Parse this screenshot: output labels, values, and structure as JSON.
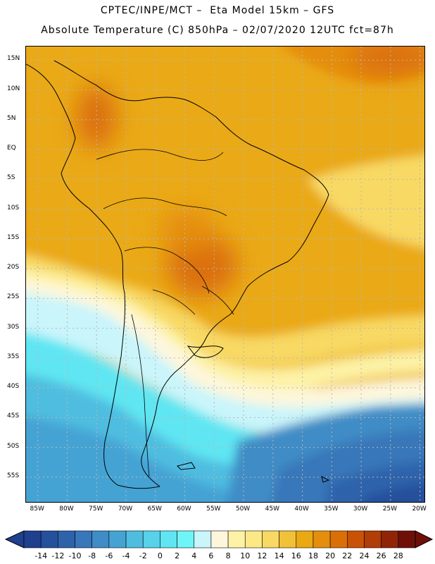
{
  "header": {
    "line1": "CPTEC/INPE/MCT –  Eta Model 15km – GFS",
    "line2": "Absolute Temperature (C) 850hPa – 02/07/2020 12UTC fct=87h"
  },
  "axes": {
    "lat_labels": [
      "15N",
      "10N",
      "5N",
      "EQ",
      "5S",
      "10S",
      "15S",
      "20S",
      "25S",
      "30S",
      "35S",
      "40S",
      "45S",
      "50S",
      "55S"
    ],
    "lat_values": [
      15,
      10,
      5,
      0,
      -5,
      -10,
      -15,
      -20,
      -25,
      -30,
      -35,
      -40,
      -45,
      -50,
      -55
    ],
    "lon_labels": [
      "85W",
      "80W",
      "75W",
      "70W",
      "65W",
      "60W",
      "55W",
      "50W",
      "45W",
      "40W",
      "35W",
      "30W",
      "25W",
      "20W"
    ],
    "lon_values": [
      -85,
      -80,
      -75,
      -70,
      -65,
      -60,
      -55,
      -50,
      -45,
      -40,
      -35,
      -30,
      -25,
      -20
    ]
  },
  "colorbar": {
    "labels": [
      "-14",
      "-12",
      "-10",
      "-8",
      "-6",
      "-4",
      "-2",
      "0",
      "2",
      "4",
      "6",
      "8",
      "10",
      "12",
      "14",
      "16",
      "18",
      "20",
      "22",
      "24",
      "26",
      "28"
    ],
    "colors": [
      "#1f3f8f",
      "#25509c",
      "#2e63ab",
      "#3877b9",
      "#3f8cc6",
      "#45a3d4",
      "#4fbde0",
      "#56d2ea",
      "#5fe6f2",
      "#6ff5f8",
      "#c9f5fb",
      "#fdf6dc",
      "#fdf2a6",
      "#fce985",
      "#f8d964",
      "#f1c238",
      "#eaa913",
      "#e58e0c",
      "#db6f07",
      "#c95206",
      "#b03e06",
      "#8f2506",
      "#6f1008"
    ]
  }
}
